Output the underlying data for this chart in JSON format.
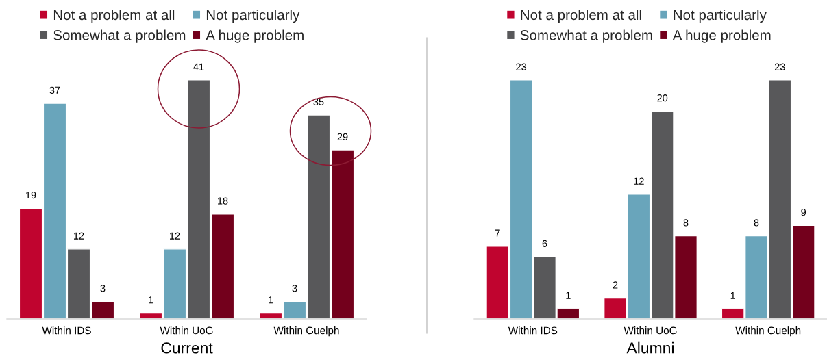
{
  "chart_data": [
    {
      "type": "bar",
      "xlabel": "Current",
      "categories": [
        "Within IDS",
        "Within UoG",
        "Within Guelph"
      ],
      "legend": "top",
      "data_labels": true,
      "series": [
        {
          "name": "Not a problem at all",
          "color": "#c0042f",
          "values": [
            19,
            1,
            1
          ]
        },
        {
          "name": "Not particularly",
          "color": "#69a5bb",
          "values": [
            37,
            12,
            3
          ]
        },
        {
          "name": "Somewhat a problem",
          "color": "#58585a",
          "values": [
            12,
            41,
            35
          ]
        },
        {
          "name": "A huge problem",
          "color": "#73001c",
          "values": [
            3,
            18,
            29
          ]
        }
      ]
    },
    {
      "type": "bar",
      "xlabel": "Alumni",
      "categories": [
        "Within IDS",
        "Within UoG",
        "Within Guelph"
      ],
      "legend": "top",
      "data_labels": true,
      "series": [
        {
          "name": "Not a problem at all",
          "color": "#c0042f",
          "values": [
            7,
            2,
            1
          ]
        },
        {
          "name": "Not particularly",
          "color": "#69a5bb",
          "values": [
            23,
            12,
            8
          ]
        },
        {
          "name": "Somewhat a problem",
          "color": "#58585a",
          "values": [
            6,
            20,
            23
          ]
        },
        {
          "name": "A huge problem",
          "color": "#73001c",
          "values": [
            1,
            8,
            9
          ]
        }
      ]
    }
  ]
}
